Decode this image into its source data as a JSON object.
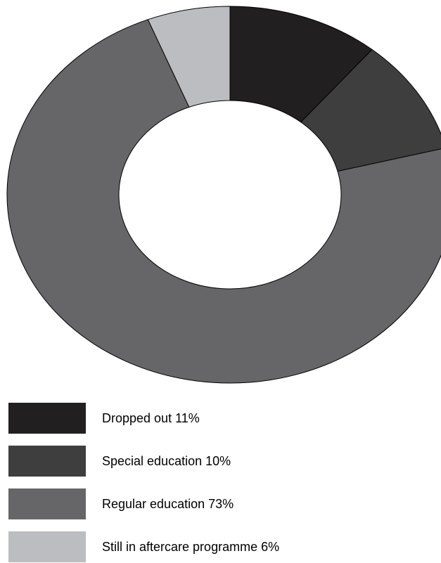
{
  "chart_data": {
    "type": "pie",
    "variant": "donut",
    "title": "",
    "legend_position": "bottom-left",
    "series": [
      {
        "name": "Dropped out",
        "value": 11,
        "label": "Dropped out 11%",
        "color": "#221f20"
      },
      {
        "name": "Special education",
        "value": 10,
        "label": "Special education 10%",
        "color": "#3f3e3f"
      },
      {
        "name": "Regular education",
        "value": 73,
        "label": "Regular education 73%",
        "color": "#666567"
      },
      {
        "name": "Still in aftercare programme",
        "value": 6,
        "label": "Still in aftercare programme 6%",
        "color": "#bcbdc0"
      }
    ]
  }
}
